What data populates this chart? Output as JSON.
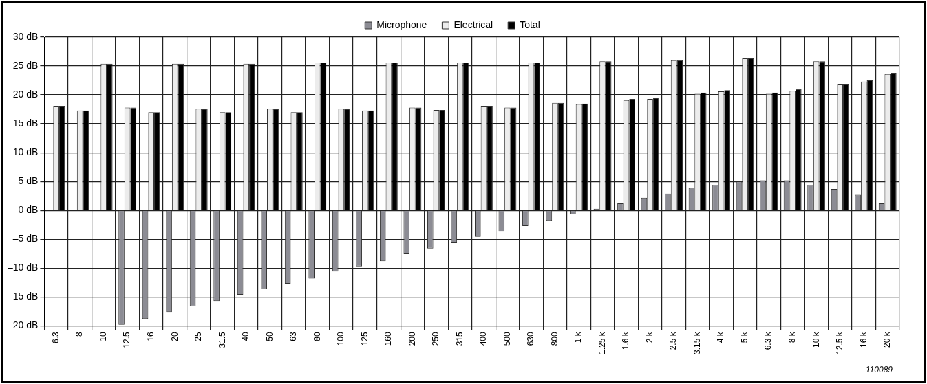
{
  "chart_data": {
    "type": "bar",
    "categories": [
      "6.3",
      "8",
      "10",
      "12.5",
      "16",
      "20",
      "25",
      "31.5",
      "40",
      "50",
      "63",
      "80",
      "100",
      "125",
      "160",
      "200",
      "250",
      "315",
      "400",
      "500",
      "630",
      "800",
      "1 k",
      "1.25 k",
      "1.6 k",
      "2 k",
      "2.5 k",
      "3.15 k",
      "4 k",
      "5 k",
      "6.3 k",
      "8 k",
      "10 k",
      "12.5 k",
      "16 k",
      "20 k"
    ],
    "series": [
      {
        "name": "Microphone",
        "color": "#8c8c94",
        "values": [
          null,
          null,
          null,
          -19.8,
          -18.8,
          -17.6,
          -16.6,
          -15.7,
          -14.6,
          -13.6,
          -12.7,
          -11.8,
          -10.6,
          -9.7,
          -8.8,
          -7.6,
          -6.6,
          -5.7,
          -4.6,
          -3.7,
          -2.7,
          -1.8,
          -0.7,
          0.3,
          1.2,
          2.2,
          2.9,
          3.9,
          4.4,
          5.0,
          5.2,
          5.2,
          4.4,
          3.7,
          2.7,
          1.2
        ]
      },
      {
        "name": "Electrical",
        "color": "#ececec",
        "values": [
          18.0,
          17.3,
          25.4,
          17.8,
          17.0,
          25.4,
          17.6,
          17.0,
          25.4,
          17.6,
          17.0,
          25.6,
          17.6,
          17.3,
          25.6,
          17.8,
          17.4,
          25.6,
          18.0,
          17.8,
          25.6,
          18.6,
          18.4,
          25.8,
          19.1,
          19.3,
          26.0,
          20.2,
          20.6,
          26.3,
          20.2,
          20.7,
          25.8,
          21.8,
          22.3,
          23.6
        ]
      },
      {
        "name": "Total",
        "color": "#000000",
        "values": [
          18.0,
          17.3,
          25.4,
          17.8,
          17.0,
          25.4,
          17.6,
          17.0,
          25.4,
          17.6,
          17.0,
          25.6,
          17.6,
          17.3,
          25.6,
          17.8,
          17.4,
          25.6,
          18.0,
          17.8,
          25.6,
          18.6,
          18.5,
          25.8,
          19.3,
          19.5,
          26.0,
          20.4,
          20.8,
          26.3,
          20.4,
          21.0,
          25.8,
          21.8,
          22.5,
          23.8
        ]
      }
    ],
    "ylim": [
      -20,
      30
    ],
    "yticks": [
      {
        "value": -20,
        "label": "–20 dB"
      },
      {
        "value": -15,
        "label": "–15 dB"
      },
      {
        "value": -10,
        "label": "–10 dB"
      },
      {
        "value": -5,
        "label": "–5 dB"
      },
      {
        "value": 0,
        "label": "0 dB"
      },
      {
        "value": 5,
        "label": "5 dB"
      },
      {
        "value": 10,
        "label": "10 dB"
      },
      {
        "value": 15,
        "label": "15 dB"
      },
      {
        "value": 20,
        "label": "20 dB"
      },
      {
        "value": 25,
        "label": "25 dB"
      },
      {
        "value": 30,
        "label": "30 dB"
      }
    ],
    "grid": true,
    "legend": "top",
    "annotations": [
      "110089"
    ]
  }
}
